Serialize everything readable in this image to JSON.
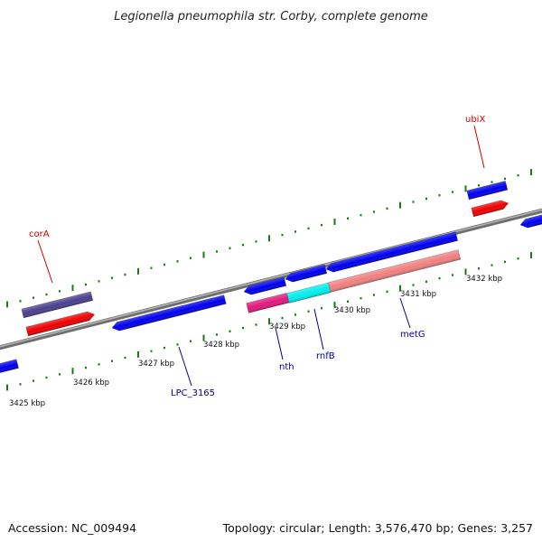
{
  "title": "Legionella pneumophila str. Corby, complete genome",
  "footer": {
    "accession": "Accession: NC_009494",
    "summary": "Topology: circular; Length: 3,576,470 bp; Genes: 3,257"
  },
  "ticks": [
    "3425 kbp",
    "3426 kbp",
    "3427 kbp",
    "3428 kbp",
    "3429 kbp",
    "3430 kbp",
    "3431 kbp",
    "3432 kbp"
  ],
  "gene_labels": [
    {
      "name": "corA",
      "color": "#cc0000"
    },
    {
      "name": "ubiX",
      "color": "#cc0000"
    },
    {
      "name": "LPC_3165",
      "color": "#00008b"
    },
    {
      "name": "nth",
      "color": "#00008b"
    },
    {
      "name": "rnfB",
      "color": "#00008b"
    },
    {
      "name": "metG",
      "color": "#00008b"
    }
  ],
  "colors": {
    "backbone": "#8a8a8a",
    "cds": "#0000ee",
    "rna": "#ee0000",
    "cog_purple": "#4a3f8f",
    "cog_pink": "#e0197f",
    "cog_cyan": "#00eeee",
    "cog_salmon": "#f08080",
    "tick": "#1a7a1a"
  }
}
